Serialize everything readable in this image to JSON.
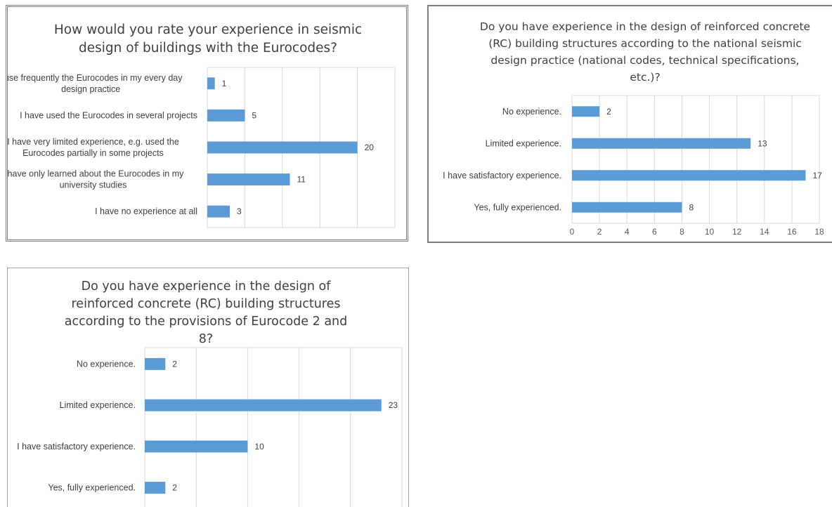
{
  "colors": {
    "bar": "#5b9bd5",
    "grid": "#d9d9d9",
    "text": "#404040"
  },
  "chart_data": [
    {
      "type": "bar",
      "orientation": "horizontal",
      "title": "How would you rate your experience in seismic design of buildings with the Eurocodes?",
      "categories": [
        "I use frequently the Eurocodes in my every day design practice",
        "I have used the Eurocodes in several projects",
        "I have very limited experience, e.g. used the Eurocodes partially in some projects",
        "I have only learned about the Eurocodes in my university studies",
        "I have no experience at all"
      ],
      "values": [
        1,
        5,
        20,
        11,
        3
      ],
      "xlim": [
        0,
        25
      ],
      "xticks_visible": false,
      "grid": true,
      "data_labels": true
    },
    {
      "type": "bar",
      "orientation": "horizontal",
      "title": "Do you have experience in the design of reinforced concrete (RC) building structures according to the national seismic design practice (national codes, technical specifications, etc.)?",
      "categories": [
        "No experience.",
        "Limited experience.",
        "I have satisfactory experience.",
        "Yes, fully experienced."
      ],
      "values": [
        2,
        13,
        17,
        8
      ],
      "xlim": [
        0,
        18
      ],
      "xticks": [
        0,
        2,
        4,
        6,
        8,
        10,
        12,
        14,
        16,
        18
      ],
      "xticks_visible": true,
      "grid": true,
      "data_labels": true
    },
    {
      "type": "bar",
      "orientation": "horizontal",
      "title": "Do you have experience in the design of reinforced concrete (RC) building structures according to the provisions of Eurocode 2 and 8?",
      "categories": [
        "No experience.",
        "Limited experience.",
        "I have satisfactory experience.",
        "Yes, fully experienced."
      ],
      "values": [
        2,
        23,
        10,
        2
      ],
      "xlim": [
        0,
        25
      ],
      "xticks_visible": false,
      "grid": true,
      "data_labels": true
    }
  ]
}
